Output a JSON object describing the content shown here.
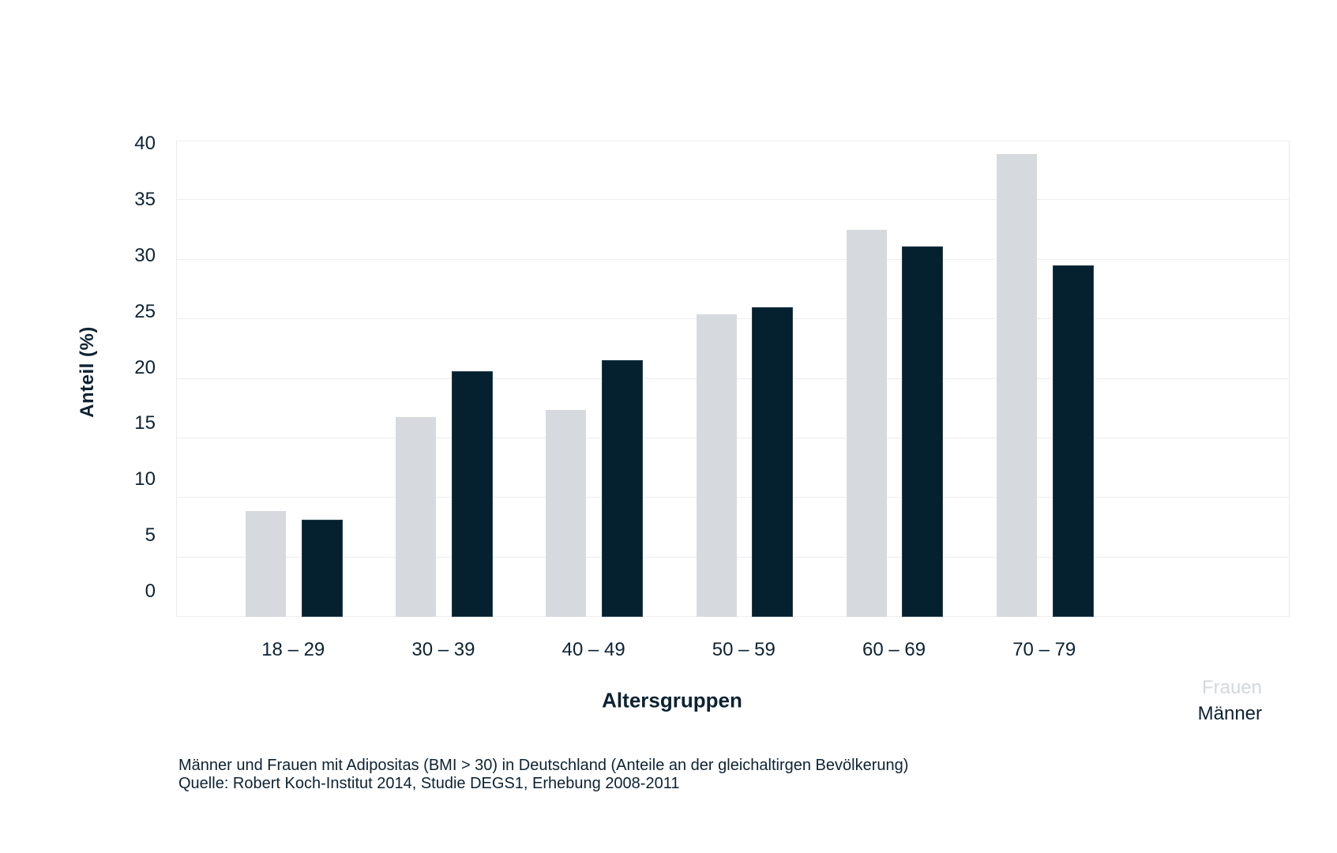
{
  "chart_data": {
    "type": "bar",
    "categories": [
      "18 – 29",
      "30 – 39",
      "40 – 49",
      "50 – 59",
      "60 – 69",
      "70 – 79"
    ],
    "series": [
      {
        "name": "Frauen",
        "color": "#d6dade",
        "legend_text_color": "#d3d8dc",
        "values": [
          8.9,
          16.8,
          17.4,
          25.4,
          32.5,
          38.9
        ]
      },
      {
        "name": "Männer",
        "color": "#05202f",
        "legend_text_color": "#0d2232",
        "values": [
          8.0,
          20.5,
          21.4,
          25.9,
          31.0,
          29.4
        ]
      }
    ],
    "xlabel": "Altersgruppen",
    "ylabel": "Anteil (%)",
    "ylim": [
      0,
      40
    ],
    "yticks": [
      0,
      5,
      10,
      15,
      20,
      25,
      30,
      35,
      40
    ],
    "grid": true,
    "legend_position": "bottom-right",
    "background": "#ffffff",
    "text_color": "#0d2232",
    "gridline_color": "#ededef"
  },
  "caption": {
    "line1": "Männer und Frauen mit Adipositas (BMI > 30) in Deutschland (Anteile an der gleichaltirgen Bevölkerung)",
    "line2": "Quelle: Robert Koch-Institut 2014, Studie DEGS1, Erhebung 2008-2011"
  }
}
